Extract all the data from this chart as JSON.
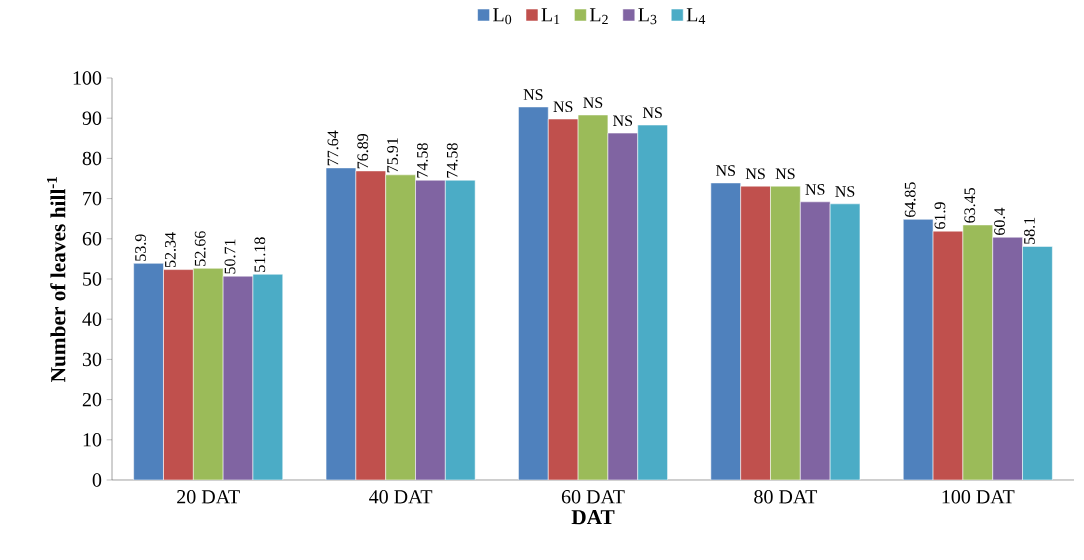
{
  "chart_data": {
    "type": "bar",
    "xlabel": "DAT",
    "ylabel": "Number of leaves hill$^{-1}$",
    "categories": [
      "20 DAT",
      "40 DAT",
      "60 DAT",
      "80 DAT",
      "100 DAT"
    ],
    "series": [
      {
        "name": "L$_{0}$",
        "color": "#4f81bd",
        "values": [
          53.9,
          77.64,
          92.8,
          73.9,
          64.85
        ],
        "value_labels": [
          "53.9",
          "77.64",
          "NS",
          "NS",
          "64.85"
        ]
      },
      {
        "name": "L$_{1}$",
        "color": "#c0504d",
        "values": [
          52.34,
          76.89,
          89.8,
          73.1,
          61.9
        ],
        "value_labels": [
          "52.34",
          "76.89",
          "NS",
          "NS",
          "61.9"
        ]
      },
      {
        "name": "L$_{2}$",
        "color": "#9bbb59",
        "values": [
          52.66,
          75.91,
          90.8,
          73.1,
          63.45
        ],
        "value_labels": [
          "52.66",
          "75.91",
          "NS",
          "NS",
          "63.45"
        ]
      },
      {
        "name": "L$_{3}$",
        "color": "#8064a2",
        "values": [
          50.71,
          74.58,
          86.3,
          69.2,
          60.4
        ],
        "value_labels": [
          "50.71",
          "74.58",
          "NS",
          "NS",
          "60.4"
        ]
      },
      {
        "name": "L$_{4}$",
        "color": "#4bacc6",
        "values": [
          51.18,
          74.58,
          88.3,
          68.7,
          58.1
        ],
        "value_labels": [
          "51.18",
          "74.58",
          "NS",
          "NS",
          "58.1"
        ]
      }
    ],
    "ylim": [
      0,
      100
    ],
    "yticks": [
      0,
      10,
      20,
      30,
      40,
      50,
      60,
      70,
      80,
      90,
      100
    ],
    "grid": false,
    "legend": "top"
  }
}
